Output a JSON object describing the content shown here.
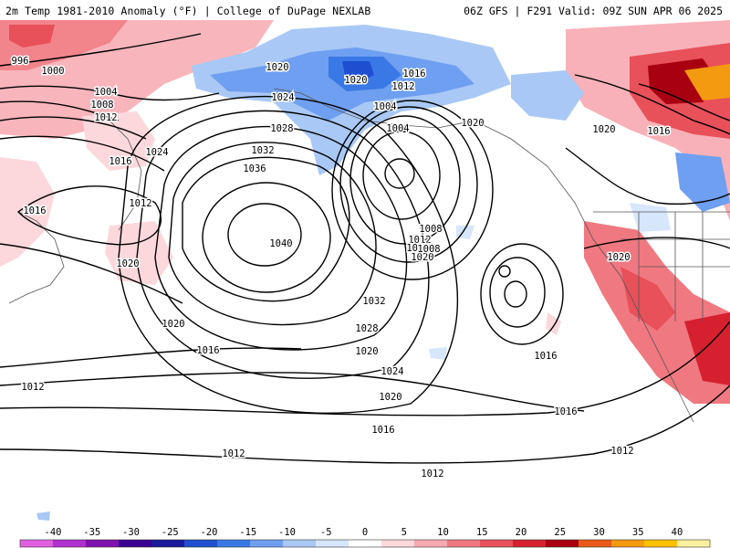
{
  "header": {
    "title_left": "2m Temp 1981-2010 Anomaly (°F) | College of DuPage NEXLAB",
    "title_right": "06Z GFS | F291 Valid: 09Z SUN APR 06 2025"
  },
  "colorbar": {
    "ticks": [
      "-40",
      "-35",
      "-30",
      "-25",
      "-20",
      "-15",
      "-10",
      "-5",
      "0",
      "5",
      "10",
      "15",
      "20",
      "25",
      "30",
      "35",
      "40"
    ],
    "colors": [
      "#e060e0",
      "#b030d0",
      "#8010b0",
      "#3a0090",
      "#1a1a9a",
      "#1f4fd0",
      "#3a78e6",
      "#6f9ff0",
      "#a9c8f5",
      "#d6e6fb",
      "#ffffff",
      "#fcd8dc",
      "#f7a9b0",
      "#f07880",
      "#e8505a",
      "#d62030",
      "#a80010",
      "#e85a1a",
      "#f49a10",
      "#ffc000",
      "#fff0a0"
    ],
    "units": "°F"
  },
  "isobars": {
    "labels": [
      "996",
      "1000",
      "1004",
      "1008",
      "1012",
      "1016",
      "1020",
      "1024",
      "1028",
      "1032",
      "1036",
      "1040",
      "1012",
      "1016",
      "1020",
      "1024",
      "1028",
      "1032",
      "1020",
      "1016",
      "1012",
      "1008",
      "1004",
      "1012",
      "1016",
      "1020",
      "1020",
      "1016",
      "1012",
      "1020",
      "1024",
      "1020",
      "1016",
      "1012",
      "1016",
      "1012",
      "1020",
      "1016",
      "1012",
      "1008",
      "1004",
      "1020",
      "1020",
      "1016"
    ]
  }
}
